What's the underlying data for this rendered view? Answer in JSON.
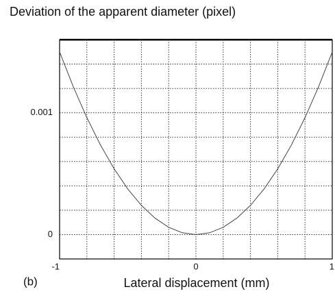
{
  "chart_data": {
    "type": "line",
    "title": "Deviation of the apparent diameter (pixel)",
    "panel_label": "(b)",
    "x_label": "Lateral displacement (mm)",
    "x": [
      -1,
      -0.9,
      -0.8,
      -0.7,
      -0.6,
      -0.5,
      -0.4,
      -0.3,
      -0.2,
      -0.1,
      0,
      0.1,
      0.2,
      0.3,
      0.4,
      0.5,
      0.6,
      0.7,
      0.8,
      0.9,
      1
    ],
    "series": [
      {
        "color": "#444444",
        "values": [
          0.0015,
          0.001215,
          0.00096,
          0.000735,
          0.00054,
          0.000375,
          0.00024,
          0.000135,
          6e-05,
          1.5e-05,
          0,
          1.5e-05,
          6e-05,
          0.000135,
          0.00024,
          0.000375,
          0.00054,
          0.000735,
          0.00096,
          0.001215,
          0.0015
        ]
      }
    ],
    "xlim": [
      -1,
      1
    ],
    "ylim": [
      -0.0002,
      0.0016
    ],
    "xticks": [
      -1,
      0,
      1
    ],
    "yticks": [
      0,
      0.001
    ],
    "xgrid": [
      -0.8,
      -0.6,
      -0.4,
      -0.2,
      0,
      0.2,
      0.4,
      0.6,
      0.8
    ],
    "ygrid": [
      0,
      0.0002,
      0.0004,
      0.0006,
      0.0008,
      0.001,
      0.0012,
      0.0014
    ],
    "grid": true
  }
}
